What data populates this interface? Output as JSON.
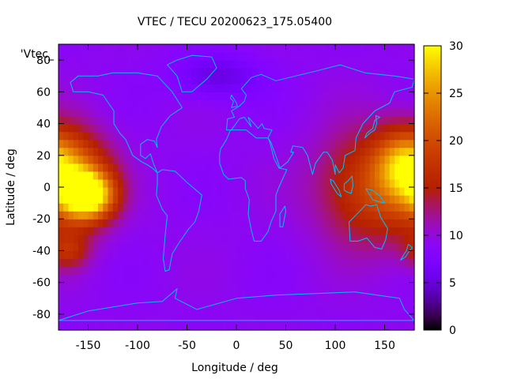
{
  "chart_data": {
    "type": "heatmap",
    "title": "VTEC / TECU 20200623_175.05400",
    "xlabel": "Longitude / deg",
    "ylabel": "Latitude / deg",
    "legend_label": "'Vtec_",
    "xlim": [
      -180,
      180
    ],
    "ylim": [
      -90,
      90
    ],
    "zlim": [
      0,
      30
    ],
    "x_ticks": [
      -150,
      -100,
      -50,
      0,
      50,
      100,
      150
    ],
    "y_ticks": [
      -80,
      -60,
      -40,
      -20,
      0,
      20,
      40,
      60,
      80
    ],
    "z_ticks": [
      0,
      5,
      10,
      15,
      20,
      25,
      30
    ],
    "x_tick_labels": [
      "-150",
      "-100",
      "-50",
      "0",
      "50",
      "100",
      "150"
    ],
    "y_tick_labels": [
      "-80",
      "-60",
      "-40",
      "-20",
      "0",
      "20",
      "40",
      "60",
      "80"
    ],
    "z_tick_labels": [
      "0",
      "5",
      "10",
      "15",
      "20",
      "25",
      "30"
    ],
    "colormap": "gnuplot-pm3d-black-purple-red-yellow",
    "background_level": 9,
    "features": [
      {
        "lon": -160,
        "lat": 5,
        "value": 20,
        "spread_lon": 25,
        "spread_lat": 20
      },
      {
        "lon": -150,
        "lat": -5,
        "value": 28,
        "spread_lon": 18,
        "spread_lat": 10
      },
      {
        "lon": -170,
        "lat": -40,
        "value": 15,
        "spread_lon": 15,
        "spread_lat": 8
      },
      {
        "lon": 140,
        "lat": 0,
        "value": 19,
        "spread_lon": 40,
        "spread_lat": 25
      },
      {
        "lon": 170,
        "lat": 15,
        "value": 20,
        "spread_lon": 20,
        "spread_lat": 15
      },
      {
        "lon": -20,
        "lat": 70,
        "value": 5,
        "spread_lon": 30,
        "spread_lat": 10
      }
    ],
    "coastline_color": "#00bfff"
  }
}
